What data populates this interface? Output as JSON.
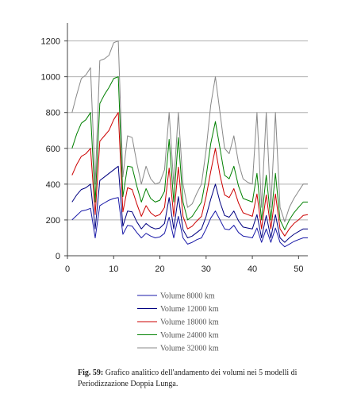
{
  "chart_data": {
    "type": "line",
    "title": "",
    "xlabel": "",
    "ylabel": "",
    "xlim": [
      0,
      52
    ],
    "ylim": [
      0,
      1300
    ],
    "x_ticks": [
      0,
      10,
      20,
      30,
      40,
      50
    ],
    "y_ticks": [
      0,
      200,
      400,
      600,
      800,
      1000,
      1200
    ],
    "grid": "horizontal",
    "legend_position": "bottom",
    "x": [
      1,
      2,
      3,
      4,
      5,
      6,
      7,
      8,
      9,
      10,
      11,
      12,
      13,
      14,
      15,
      16,
      17,
      18,
      19,
      20,
      21,
      22,
      23,
      24,
      25,
      26,
      27,
      28,
      29,
      30,
      31,
      32,
      33,
      34,
      35,
      36,
      37,
      38,
      39,
      40,
      41,
      42,
      43,
      44,
      45,
      46,
      47,
      48,
      49,
      50,
      51,
      52
    ],
    "series": [
      {
        "name": "Volume 8000 km",
        "color": "#1a1aa8",
        "values": [
          200,
          225,
          250,
          255,
          265,
          100,
          280,
          295,
          310,
          320,
          325,
          120,
          170,
          165,
          130,
          100,
          125,
          110,
          100,
          105,
          125,
          215,
          100,
          220,
          100,
          65,
          75,
          90,
          100,
          150,
          210,
          250,
          200,
          150,
          145,
          170,
          130,
          110,
          105,
          100,
          155,
          75,
          150,
          75,
          155,
          75,
          50,
          65,
          80,
          90,
          100,
          100
        ]
      },
      {
        "name": "Volume 12000 km",
        "color": "#000080",
        "values": [
          300,
          340,
          370,
          380,
          400,
          150,
          420,
          440,
          460,
          480,
          500,
          165,
          250,
          245,
          190,
          150,
          180,
          160,
          150,
          155,
          180,
          325,
          150,
          330,
          145,
          100,
          110,
          130,
          150,
          220,
          315,
          400,
          300,
          225,
          215,
          250,
          195,
          160,
          155,
          150,
          230,
          100,
          225,
          100,
          230,
          100,
          75,
          100,
          120,
          135,
          150,
          150
        ]
      },
      {
        "name": "Volume 18000 km",
        "color": "#cc0000",
        "values": [
          450,
          510,
          555,
          570,
          600,
          230,
          640,
          670,
          700,
          760,
          800,
          245,
          380,
          370,
          290,
          220,
          280,
          240,
          220,
          230,
          270,
          490,
          220,
          495,
          220,
          150,
          165,
          195,
          220,
          330,
          470,
          600,
          450,
          340,
          325,
          375,
          295,
          240,
          230,
          220,
          345,
          150,
          340,
          150,
          345,
          150,
          110,
          150,
          180,
          200,
          225,
          230
        ]
      },
      {
        "name": "Volume 24000 km",
        "color": "#008000",
        "values": [
          600,
          680,
          740,
          760,
          800,
          300,
          850,
          900,
          940,
          990,
          1000,
          330,
          500,
          495,
          390,
          300,
          375,
          320,
          300,
          310,
          360,
          650,
          300,
          660,
          300,
          200,
          220,
          260,
          300,
          440,
          625,
          750,
          600,
          450,
          430,
          500,
          390,
          320,
          310,
          300,
          460,
          200,
          450,
          200,
          460,
          200,
          145,
          200,
          240,
          270,
          300,
          300
        ]
      },
      {
        "name": "Volume 32000 km",
        "color": "#888888",
        "values": [
          800,
          900,
          990,
          1010,
          1050,
          400,
          1090,
          1100,
          1120,
          1190,
          1200,
          440,
          670,
          660,
          520,
          400,
          500,
          430,
          400,
          410,
          480,
          800,
          400,
          800,
          400,
          270,
          290,
          350,
          400,
          590,
          840,
          1000,
          800,
          600,
          570,
          670,
          520,
          430,
          410,
          400,
          800,
          270,
          800,
          270,
          800,
          270,
          190,
          270,
          320,
          360,
          400,
          400
        ]
      }
    ]
  },
  "caption": {
    "label": "Fig. 59:",
    "text": " Grafico analitico dell'andamento dei volumi nei 5 modelli di Periodizzazione Doppia Lunga."
  }
}
